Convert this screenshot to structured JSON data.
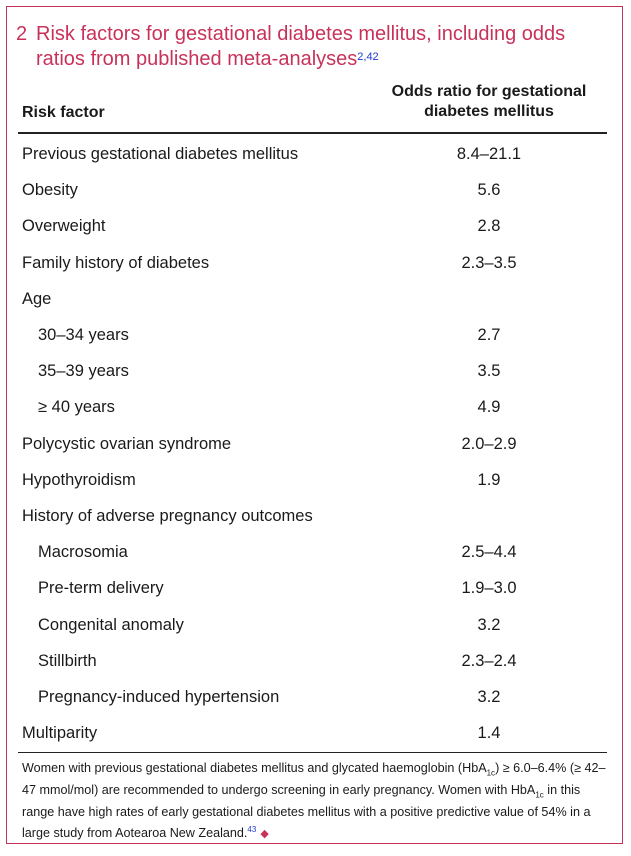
{
  "table": {
    "number": "2",
    "title": "Risk factors for gestational diabetes mellitus, including odds ratios from published meta-analyses",
    "title_refs": "2,42",
    "col_factor": "Risk factor",
    "col_odds": "Odds ratio for gestational diabetes mellitus",
    "rows": [
      {
        "label": "Previous gestational diabetes mellitus",
        "value": "8.4–21.1",
        "indent": false
      },
      {
        "label": "Obesity",
        "value": "5.6",
        "indent": false
      },
      {
        "label": "Overweight",
        "value": "2.8",
        "indent": false
      },
      {
        "label": "Family history of diabetes",
        "value": "2.3–3.5",
        "indent": false
      },
      {
        "label": "Age",
        "value": "",
        "indent": false
      },
      {
        "label": "30–34 years",
        "value": "2.7",
        "indent": true
      },
      {
        "label": "35–39 years",
        "value": "3.5",
        "indent": true
      },
      {
        "label": "≥ 40 years",
        "value": "4.9",
        "indent": true
      },
      {
        "label": "Polycystic ovarian syndrome",
        "value": "2.0–2.9",
        "indent": false
      },
      {
        "label": "Hypothyroidism",
        "value": "1.9",
        "indent": false
      },
      {
        "label": "History of adverse pregnancy outcomes",
        "value": "",
        "indent": false
      },
      {
        "label": "Macrosomia",
        "value": "2.5–4.4",
        "indent": true
      },
      {
        "label": "Pre-term delivery",
        "value": "1.9–3.0",
        "indent": true
      },
      {
        "label": "Congenital anomaly",
        "value": "3.2",
        "indent": true
      },
      {
        "label": "Stillbirth",
        "value": "2.3–2.4",
        "indent": true
      },
      {
        "label": "Pregnancy-induced hypertension",
        "value": "3.2",
        "indent": true
      },
      {
        "label": "Multiparity",
        "value": "1.4",
        "indent": false
      }
    ]
  },
  "footnote": {
    "p1": "Women with previous gestational diabetes mellitus and glycated haemoglobin (HbA",
    "sub1": "1c",
    "p2": ") ≥ 6.0–6.4% (≥ 42–47 mmol/mol) are recommended to undergo screening in early pregnancy. Women with HbA",
    "sub2": "1c",
    "p3": " in this range have high rates of early gestational diabetes mellitus with a positive predictive value of 54% in a large study from Aotearoa New Zealand.",
    "ref": "43"
  },
  "colors": {
    "accent": "#c8325a",
    "ref_link": "#1f3ad0"
  }
}
